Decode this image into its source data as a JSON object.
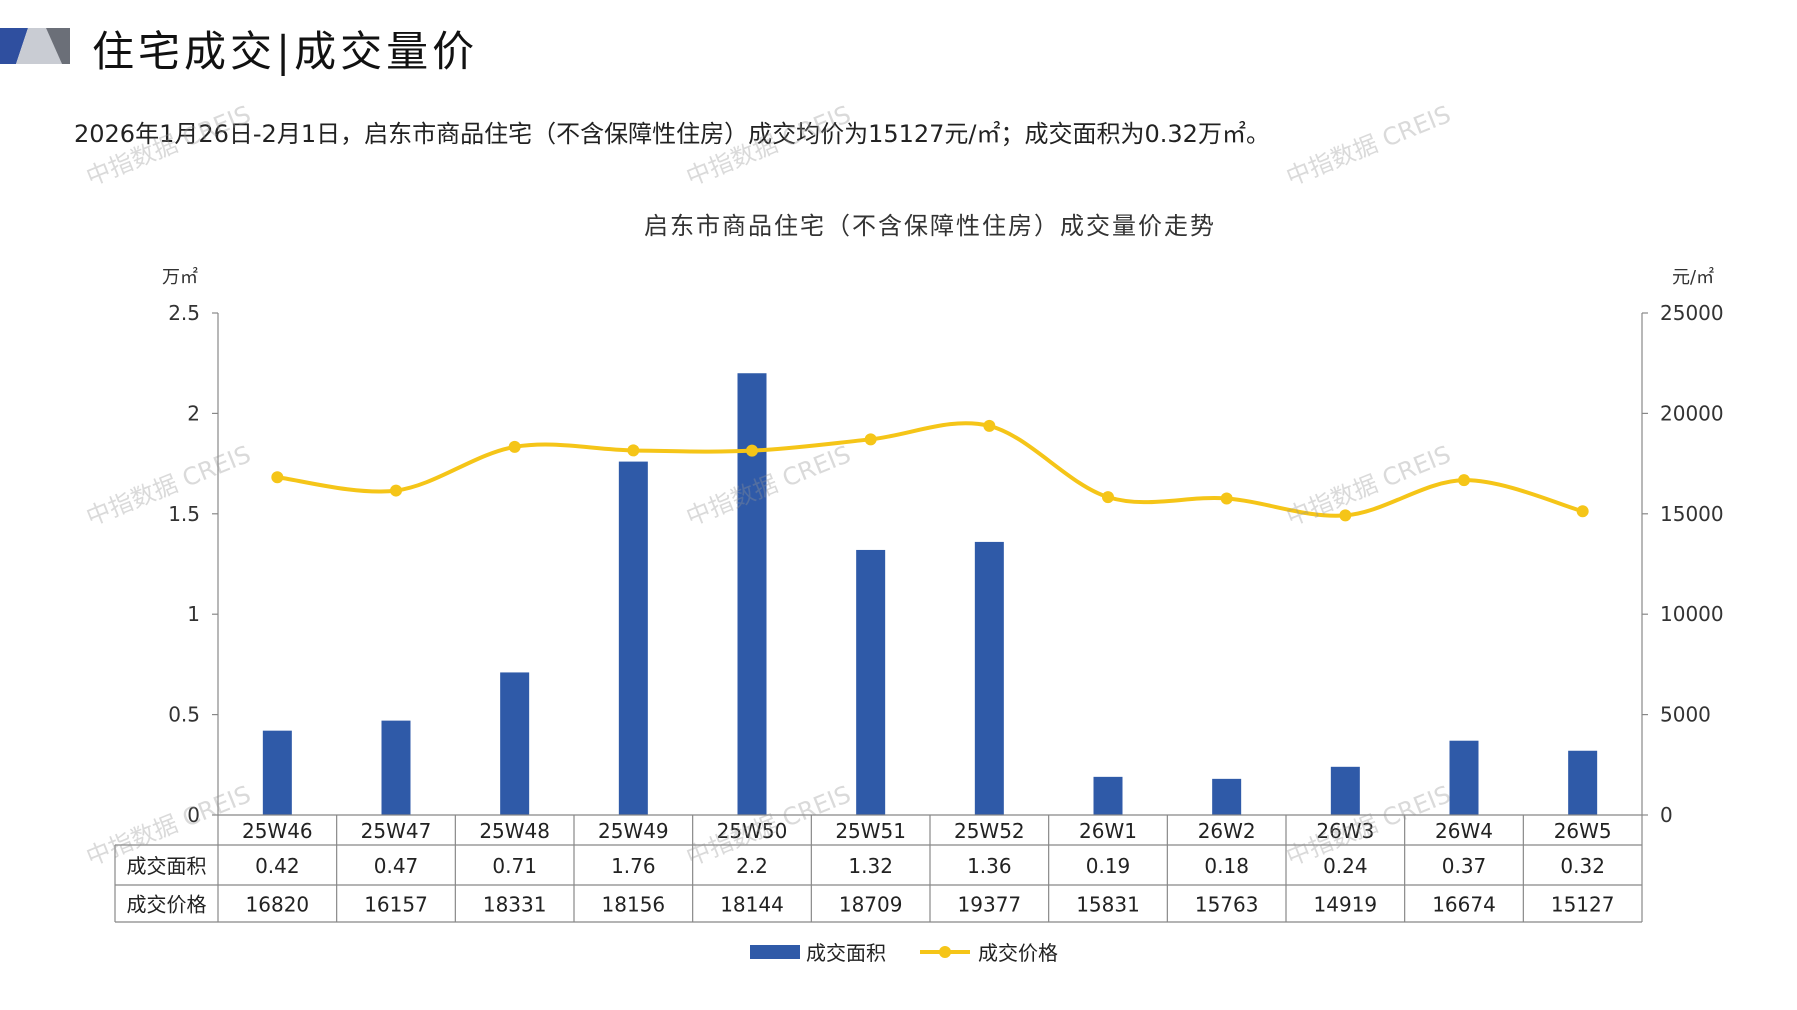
{
  "header": {
    "title": "住宅成交|成交量价",
    "summary": "2026年1月26日-2月1日，启东市商品住宅（不含保障性住房）成交均价为15127元/㎡；成交面积为0.32万㎡。"
  },
  "watermark_text": "中指数据 CREIS",
  "chart_data": {
    "type": "bar",
    "title": "启东市商品住宅（不含保障性住房）成交量价走势",
    "categories": [
      "25W46",
      "25W47",
      "25W48",
      "25W49",
      "25W50",
      "25W51",
      "25W52",
      "26W1",
      "26W2",
      "26W3",
      "26W4",
      "26W5"
    ],
    "y_left_unit": "万㎡",
    "y_right_unit": "元/㎡",
    "ylim_left": [
      0,
      2.5
    ],
    "yticks_left": [
      "0",
      "0.5",
      "1",
      "1.5",
      "2",
      "2.5"
    ],
    "ylim_right": [
      0,
      25000
    ],
    "yticks_right": [
      "0",
      "5000",
      "10000",
      "15000",
      "20000",
      "25000"
    ],
    "series": [
      {
        "name": "成交面积",
        "type": "bar",
        "axis": "left",
        "color": "#2f5aa8",
        "values": [
          0.42,
          0.47,
          0.71,
          1.76,
          2.2,
          1.32,
          1.36,
          0.19,
          0.18,
          0.24,
          0.37,
          0.32
        ],
        "labels": [
          "0.42",
          "0.47",
          "0.71",
          "1.76",
          "2.2",
          "1.32",
          "1.36",
          "0.19",
          "0.18",
          "0.24",
          "0.37",
          "0.32"
        ]
      },
      {
        "name": "成交价格",
        "type": "line",
        "axis": "right",
        "color": "#f5c518",
        "values": [
          16820,
          16157,
          18331,
          18156,
          18144,
          18709,
          19377,
          15831,
          15763,
          14919,
          16674,
          15127
        ],
        "labels": [
          "16820",
          "16157",
          "18331",
          "18156",
          "18144",
          "18709",
          "19377",
          "15831",
          "15763",
          "14919",
          "16674",
          "15127"
        ]
      }
    ],
    "legend": "bottom-center",
    "grid": false
  }
}
